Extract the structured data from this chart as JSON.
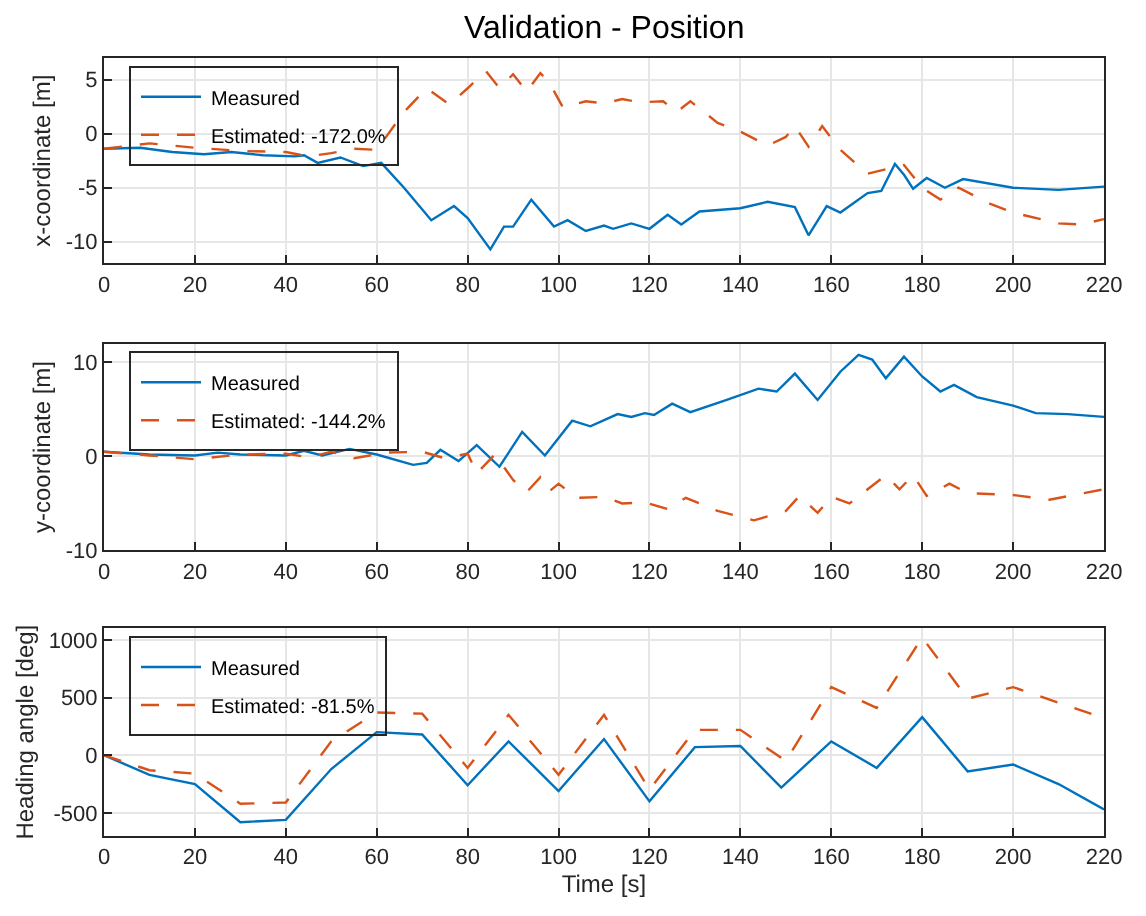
{
  "chart_data": [
    {
      "type": "line",
      "title": "Validation - Position",
      "ylabel": "x-coordinate [m]",
      "xlim": [
        0,
        220
      ],
      "xticks": [
        0,
        20,
        40,
        60,
        80,
        100,
        120,
        140,
        160,
        180,
        200,
        220
      ],
      "ylim": [
        -12,
        7
      ],
      "yticks": [
        -10,
        -5,
        0,
        5
      ],
      "grid": true,
      "legend": "top left",
      "series": [
        {
          "name": "Measured",
          "color": "#0072bd",
          "line_style": "solid",
          "x": [
            0,
            8,
            15,
            22,
            28,
            35,
            42,
            44,
            47,
            52,
            57,
            61,
            66,
            72,
            77,
            80,
            85,
            88,
            90,
            94,
            99,
            102,
            106,
            110,
            112,
            116,
            120,
            124,
            127,
            131,
            140,
            146,
            152,
            155,
            159,
            162,
            168,
            171,
            174,
            176,
            178,
            181,
            185,
            189,
            200,
            210,
            220
          ],
          "values": [
            -1.4,
            -1.3,
            -1.7,
            -1.9,
            -1.7,
            -2.0,
            -2.1,
            -2.0,
            -2.7,
            -2.2,
            -3.0,
            -2.7,
            -5,
            -8,
            -6.7,
            -7.8,
            -10.7,
            -8.6,
            -8.6,
            -6.1,
            -8.6,
            -8.0,
            -9.0,
            -8.5,
            -8.8,
            -8.3,
            -8.8,
            -7.5,
            -8.4,
            -7.2,
            -6.9,
            -6.3,
            -6.8,
            -9.4,
            -6.7,
            -7.3,
            -5.5,
            -5.3,
            -2.8,
            -3.8,
            -5.1,
            -4.1,
            -5.0,
            -4.2,
            -5.0,
            -5.2,
            -4.9
          ]
        },
        {
          "name": "Estimated: -172.0%",
          "color": "#d95319",
          "line_style": "dashed",
          "x": [
            0,
            10,
            20,
            30,
            40,
            45,
            50,
            55,
            60,
            66,
            71,
            76,
            80,
            84,
            87,
            90,
            93,
            96,
            98,
            101,
            106,
            110,
            114,
            118,
            123,
            126,
            129,
            135,
            140,
            146,
            150,
            152,
            155,
            158,
            162,
            168,
            173,
            176,
            180,
            184,
            188,
            195,
            200,
            210,
            215,
            220
          ],
          "values": [
            -1.4,
            -0.9,
            -1.3,
            -1.6,
            -1.7,
            -2.1,
            -1.8,
            -1.4,
            -1.5,
            2,
            4.2,
            2.7,
            4.2,
            5.8,
            4.2,
            5.5,
            3.9,
            5.6,
            4.7,
            2.4,
            3.0,
            2.8,
            3.2,
            2.9,
            3.0,
            2.0,
            3.0,
            1.0,
            0.2,
            -1.1,
            -0.3,
            0.7,
            -1.2,
            0.7,
            -1.5,
            -3.7,
            -3.2,
            -2.9,
            -5,
            -6.1,
            -5,
            -6.5,
            -7.3,
            -8.3,
            -8.4,
            -7.9
          ]
        }
      ]
    },
    {
      "type": "line",
      "ylabel": "y-coordinate [m]",
      "xlim": [
        0,
        220
      ],
      "xticks": [
        0,
        20,
        40,
        60,
        80,
        100,
        120,
        140,
        160,
        180,
        200,
        220
      ],
      "ylim": [
        -10,
        12
      ],
      "yticks": [
        -10,
        0,
        10
      ],
      "grid": true,
      "legend": "top left",
      "series": [
        {
          "name": "Measured",
          "color": "#0072bd",
          "line_style": "solid",
          "x": [
            0,
            10,
            20,
            25,
            30,
            40,
            44,
            48,
            54,
            60,
            68,
            71,
            74,
            78,
            82,
            87,
            92,
            97,
            103,
            107,
            113,
            116,
            119,
            121,
            125,
            129,
            137,
            144,
            148,
            152,
            157,
            162,
            166,
            169,
            172,
            176,
            180,
            184,
            187,
            192,
            200,
            205,
            212,
            220
          ],
          "values": [
            0.5,
            0.2,
            0.1,
            0.4,
            0.2,
            0.1,
            0.6,
            0.1,
            0.8,
            0.2,
            -0.9,
            -0.7,
            0.7,
            -0.5,
            1.2,
            -1.1,
            2.6,
            0.1,
            3.8,
            3.2,
            4.5,
            4.2,
            4.6,
            4.4,
            5.6,
            4.7,
            6.0,
            7.2,
            6.9,
            8.8,
            6.0,
            9.0,
            10.8,
            10.3,
            8.3,
            10.6,
            8.5,
            6.9,
            7.6,
            6.3,
            5.4,
            4.6,
            4.5,
            4.2
          ]
        },
        {
          "name": "Estimated: -144.2%",
          "color": "#d95319",
          "line_style": "dashed",
          "x": [
            0,
            10,
            20,
            30,
            40,
            45,
            50,
            55,
            62,
            70,
            75,
            80,
            82,
            86,
            90,
            93,
            96,
            98,
            100,
            104,
            110,
            114,
            119,
            124,
            128,
            135,
            143,
            150,
            153,
            157,
            160,
            164,
            172,
            175,
            178,
            181,
            186,
            190,
            200,
            208,
            220
          ],
          "values": [
            0.5,
            0.1,
            -0.3,
            0.2,
            0.3,
            -0.1,
            0.5,
            -0.2,
            0.4,
            0.5,
            -0.2,
            0.3,
            -1.8,
            0.2,
            -2.5,
            -3.8,
            -2.2,
            -3.7,
            -2.9,
            -4.4,
            -4.3,
            -5.0,
            -4.9,
            -5.6,
            -4.4,
            -5.8,
            -6.8,
            -5.8,
            -4.2,
            -6.0,
            -4.3,
            -5.0,
            -2.0,
            -3.5,
            -2.0,
            -4.2,
            -2.9,
            -3.9,
            -4.1,
            -4.6,
            -3.5
          ]
        }
      ]
    },
    {
      "type": "line",
      "xlabel": "Time [s]",
      "ylabel": "Heading angle [deg]",
      "xlim": [
        0,
        220
      ],
      "xticks": [
        0,
        20,
        40,
        60,
        80,
        100,
        120,
        140,
        160,
        180,
        200,
        220
      ],
      "ylim": [
        -700,
        1100
      ],
      "yticks": [
        -500,
        0,
        500,
        1000
      ],
      "grid": true,
      "legend": "top left",
      "series": [
        {
          "name": "Measured",
          "color": "#0072bd",
          "line_style": "solid",
          "x": [
            0,
            10,
            20,
            30,
            40,
            50,
            60,
            70,
            80,
            89,
            100,
            110,
            120,
            130,
            140,
            149,
            160,
            170,
            180,
            190,
            200,
            210,
            220
          ],
          "values": [
            0,
            -170,
            -250,
            -580,
            -560,
            -120,
            200,
            180,
            -260,
            120,
            -310,
            140,
            -400,
            70,
            80,
            -280,
            120,
            -110,
            330,
            -140,
            -80,
            -250,
            -470
          ]
        },
        {
          "name": "Estimated: -81.5%",
          "color": "#d95319",
          "line_style": "dashed",
          "x": [
            0,
            10,
            20,
            30,
            40,
            50,
            60,
            70,
            80,
            89,
            100,
            110,
            120,
            130,
            140,
            150,
            160,
            170,
            180,
            190,
            200,
            220
          ],
          "values": [
            0,
            -130,
            -160,
            -420,
            -410,
            120,
            370,
            360,
            -110,
            350,
            -170,
            350,
            -300,
            220,
            220,
            -50,
            590,
            410,
            1020,
            490,
            590,
            320
          ]
        }
      ]
    }
  ]
}
